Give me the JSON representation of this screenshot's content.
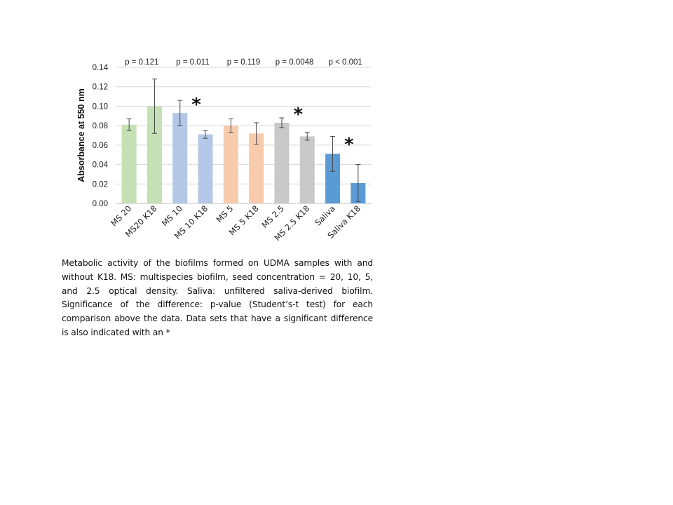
{
  "chart_data": {
    "type": "bar",
    "title": "",
    "xlabel": "",
    "ylabel": "Absorbance at 550 nm",
    "ylim": [
      0,
      0.14
    ],
    "yticks": [
      "0.00",
      "0.02",
      "0.04",
      "0.06",
      "0.08",
      "0.10",
      "0.12",
      "0.14"
    ],
    "grid": true,
    "categories": [
      "MS 20",
      "MS20 K18",
      "MS 10",
      "MS 10 K18",
      "MS 5",
      "MS 5 K18",
      "MS 2.5",
      "MS 2.5 K18",
      "Saliva",
      "Saliva K18"
    ],
    "values": [
      0.081,
      0.1,
      0.093,
      0.071,
      0.08,
      0.072,
      0.083,
      0.069,
      0.051,
      0.021
    ],
    "errors": [
      0.006,
      0.028,
      0.013,
      0.004,
      0.007,
      0.011,
      0.005,
      0.004,
      0.018,
      0.019
    ],
    "colors": [
      "#c5e0b4",
      "#c5e0b4",
      "#b4c7e7",
      "#b4c7e7",
      "#f8cbad",
      "#f8cbad",
      "#c9c9c9",
      "#c9c9c9",
      "#5b9bd5",
      "#5b9bd5"
    ],
    "p_values": [
      "p = 0.121",
      "p = 0.011",
      "p = 0.119",
      "p = 0.0048",
      "p < 0.001"
    ],
    "significance": [
      {
        "pair": 1,
        "mark": "*",
        "y": 0.107
      },
      {
        "pair": 3,
        "mark": "*",
        "y": 0.097
      },
      {
        "pair": 4,
        "mark": "*",
        "y": 0.066
      }
    ]
  },
  "caption": "Metabolic activity of the biofilms formed on UDMA samples with and without K18.  MS: multispecies biofilm, seed concentration = 20, 10, 5, and 2.5 optical density.  Saliva: unfiltered saliva-derived biofilm. Significance of the difference: p-value (Student’s-t test) for each comparison above the data.  Data sets that have a significant difference is also indicated with an *"
}
